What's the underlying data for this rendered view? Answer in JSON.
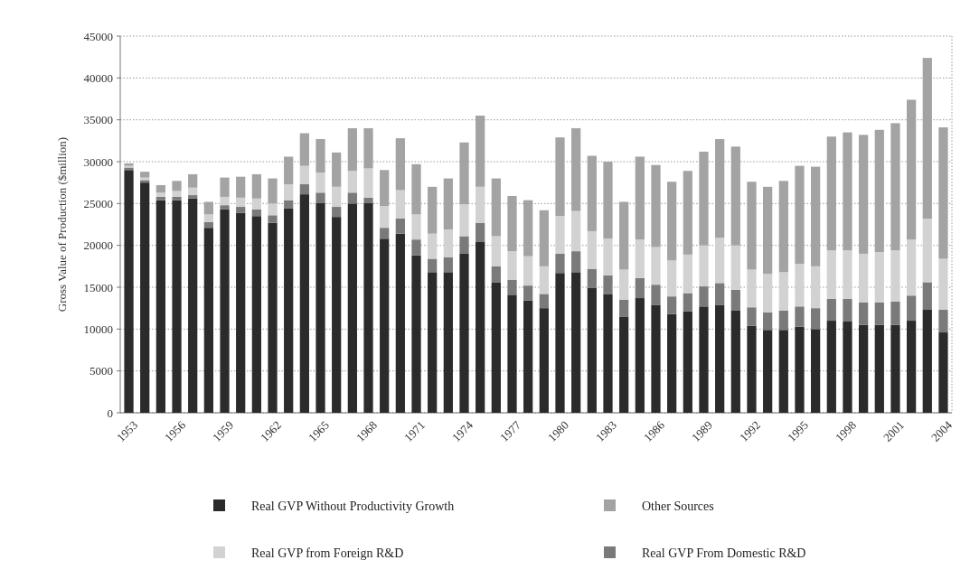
{
  "chart_data": {
    "type": "bar",
    "stacked": true,
    "ylabel": "Gross Value of Production ($million)",
    "categories": [
      "1953",
      null,
      null,
      "1956",
      null,
      null,
      "1959",
      null,
      null,
      "1962",
      null,
      null,
      "1965",
      null,
      null,
      "1968",
      null,
      null,
      "1971",
      null,
      null,
      "1974",
      null,
      null,
      "1977",
      null,
      null,
      "1980",
      null,
      null,
      "1983",
      null,
      null,
      "1986",
      null,
      null,
      "1989",
      null,
      null,
      "1992",
      null,
      null,
      "1995",
      null,
      null,
      "1998",
      null,
      null,
      "2001",
      null,
      null,
      "2004"
    ],
    "series": [
      {
        "name": "Real GVP Without Productivity Growth",
        "color": "#2b2b2b",
        "values": [
          29000,
          27500,
          25400,
          25400,
          25600,
          22100,
          24300,
          23900,
          23500,
          22700,
          24400,
          26100,
          25100,
          23400,
          25000,
          25100,
          20800,
          21400,
          18800,
          16800,
          16800,
          19000,
          20400,
          15600,
          14100,
          13400,
          12500,
          16700,
          16800,
          14900,
          14200,
          11500,
          13700,
          12900,
          11800,
          12100,
          12700,
          12900,
          12200,
          10400,
          9900,
          9900,
          10300,
          10000,
          11000,
          10900,
          10500,
          10500,
          10500,
          11000,
          12300,
          9600
        ]
      },
      {
        "name": "Real GVP From Domestic R&D",
        "color": "#7a7a7a",
        "values": [
          300,
          300,
          400,
          400,
          400,
          700,
          500,
          700,
          800,
          900,
          1000,
          1200,
          1200,
          1200,
          1300,
          600,
          1300,
          1800,
          1900,
          1600,
          1800,
          2100,
          2300,
          1900,
          1800,
          1800,
          1700,
          2300,
          2500,
          2300,
          2200,
          2000,
          2400,
          2400,
          2100,
          2200,
          2400,
          2600,
          2500,
          2200,
          2100,
          2300,
          2400,
          2500,
          2600,
          2700,
          2700,
          2700,
          2800,
          3000,
          3300,
          2700
        ]
      },
      {
        "name": "Real GVP from Foreign R&D",
        "color": "#d2d2d2",
        "values": [
          200,
          300,
          500,
          700,
          900,
          900,
          1000,
          1100,
          1300,
          1400,
          1900,
          2200,
          2400,
          2400,
          2600,
          3500,
          2600,
          3400,
          3000,
          3000,
          3300,
          3800,
          4300,
          3600,
          3400,
          3500,
          3300,
          4500,
          4800,
          4500,
          4400,
          3600,
          4600,
          4500,
          4300,
          4600,
          4900,
          5400,
          5300,
          4500,
          4600,
          4600,
          5100,
          5000,
          5800,
          5800,
          5800,
          6000,
          6100,
          6700,
          7600,
          6100
        ]
      },
      {
        "name": "Other Sources",
        "color": "#a3a3a3",
        "values": [
          300,
          700,
          900,
          1200,
          1600,
          1500,
          2300,
          2500,
          2900,
          3000,
          3300,
          3900,
          4000,
          4100,
          5100,
          4800,
          4300,
          6200,
          6000,
          5600,
          6100,
          7400,
          8500,
          6900,
          6600,
          6700,
          6700,
          9400,
          9900,
          9000,
          9200,
          8100,
          9900,
          9800,
          9400,
          10000,
          11200,
          11800,
          11800,
          10500,
          10400,
          10900,
          11700,
          11900,
          13600,
          14100,
          14200,
          14600,
          15200,
          16700,
          19200,
          15700
        ]
      }
    ],
    "ylim": [
      0,
      45000
    ],
    "yticks": [
      0,
      5000,
      10000,
      15000,
      20000,
      25000,
      30000,
      35000,
      40000,
      45000
    ],
    "grid": "y",
    "legend": "bottom"
  }
}
